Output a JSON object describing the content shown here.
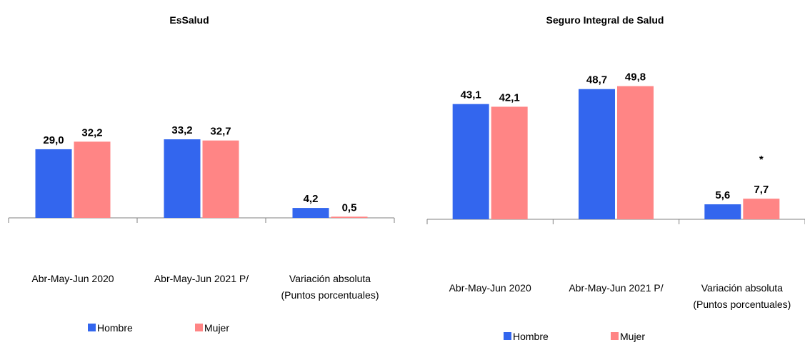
{
  "chart_data": [
    {
      "type": "bar",
      "title": "EsSalud",
      "categories": [
        "Abr-May-Jun 2020",
        "Abr-May-Jun 2021 P/",
        "Variación absoluta\n(Puntos porcentuales)"
      ],
      "series": [
        {
          "name": "Hombre",
          "color": "#3366ee",
          "label_color": "#3f6fe6",
          "values": [
            29.0,
            33.2,
            4.2
          ],
          "value_labels": [
            "29,0",
            "33,2",
            "4,2"
          ]
        },
        {
          "name": "Mujer",
          "color": "#ff8585",
          "label_color": "#f25a5a",
          "values": [
            32.2,
            32.7,
            0.5
          ],
          "value_labels": [
            "32,2",
            "32,7",
            "0,5"
          ]
        }
      ],
      "ylim": [
        0,
        80
      ]
    },
    {
      "type": "bar",
      "title": "Seguro Integral de Salud",
      "categories": [
        "Abr-May-Jun 2020",
        "Abr-May-Jun 2021 P/",
        "Variación absoluta\n(Puntos porcentuales)"
      ],
      "series": [
        {
          "name": "Hombre",
          "color": "#3366ee",
          "label_color": "#3f6fe6",
          "values": [
            43.1,
            48.7,
            5.6
          ],
          "value_labels": [
            "43,1",
            "48,7",
            "5,6"
          ]
        },
        {
          "name": "Mujer",
          "color": "#ff8585",
          "label_color": "#f25a5a",
          "values": [
            42.1,
            49.8,
            7.7
          ],
          "value_labels": [
            "42,1",
            "49,8",
            "7,7"
          ]
        }
      ],
      "annotation": "*",
      "ylim": [
        0,
        70
      ]
    }
  ]
}
